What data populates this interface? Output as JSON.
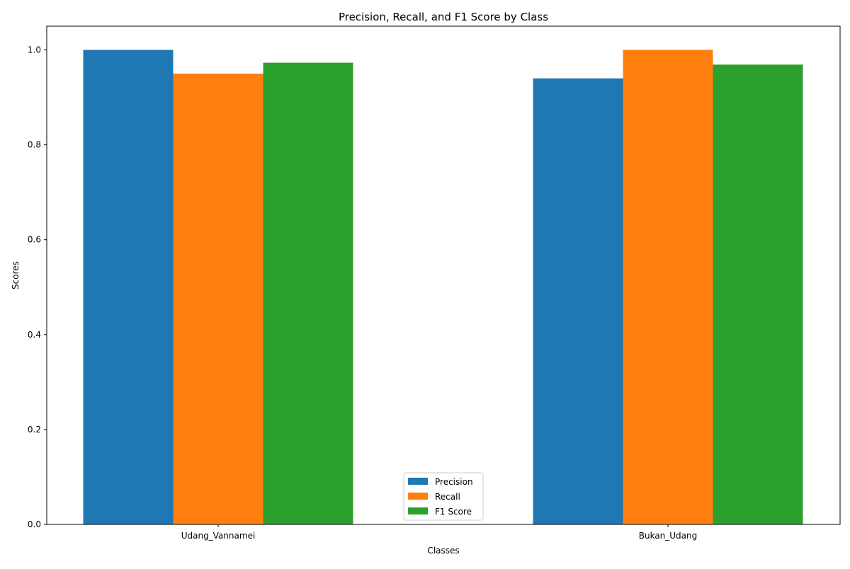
{
  "chart_data": {
    "type": "bar",
    "title": "Precision, Recall, and F1 Score by Class",
    "xlabel": "Classes",
    "ylabel": "Scores",
    "categories": [
      "Udang_Vannamei",
      "Bukan_Udang"
    ],
    "series": [
      {
        "name": "Precision",
        "color": "#1f77b4",
        "values": [
          1.0,
          0.94
        ]
      },
      {
        "name": "Recall",
        "color": "#ff7f0e",
        "values": [
          0.95,
          1.0
        ]
      },
      {
        "name": "F1 Score",
        "color": "#2ca02c",
        "values": [
          0.973,
          0.969
        ]
      }
    ],
    "ylim": [
      0,
      1.05
    ],
    "yticks": [
      "0.0",
      "0.2",
      "0.4",
      "0.6",
      "0.8",
      "1.0"
    ],
    "grid": false,
    "legend_position": "lower center"
  }
}
